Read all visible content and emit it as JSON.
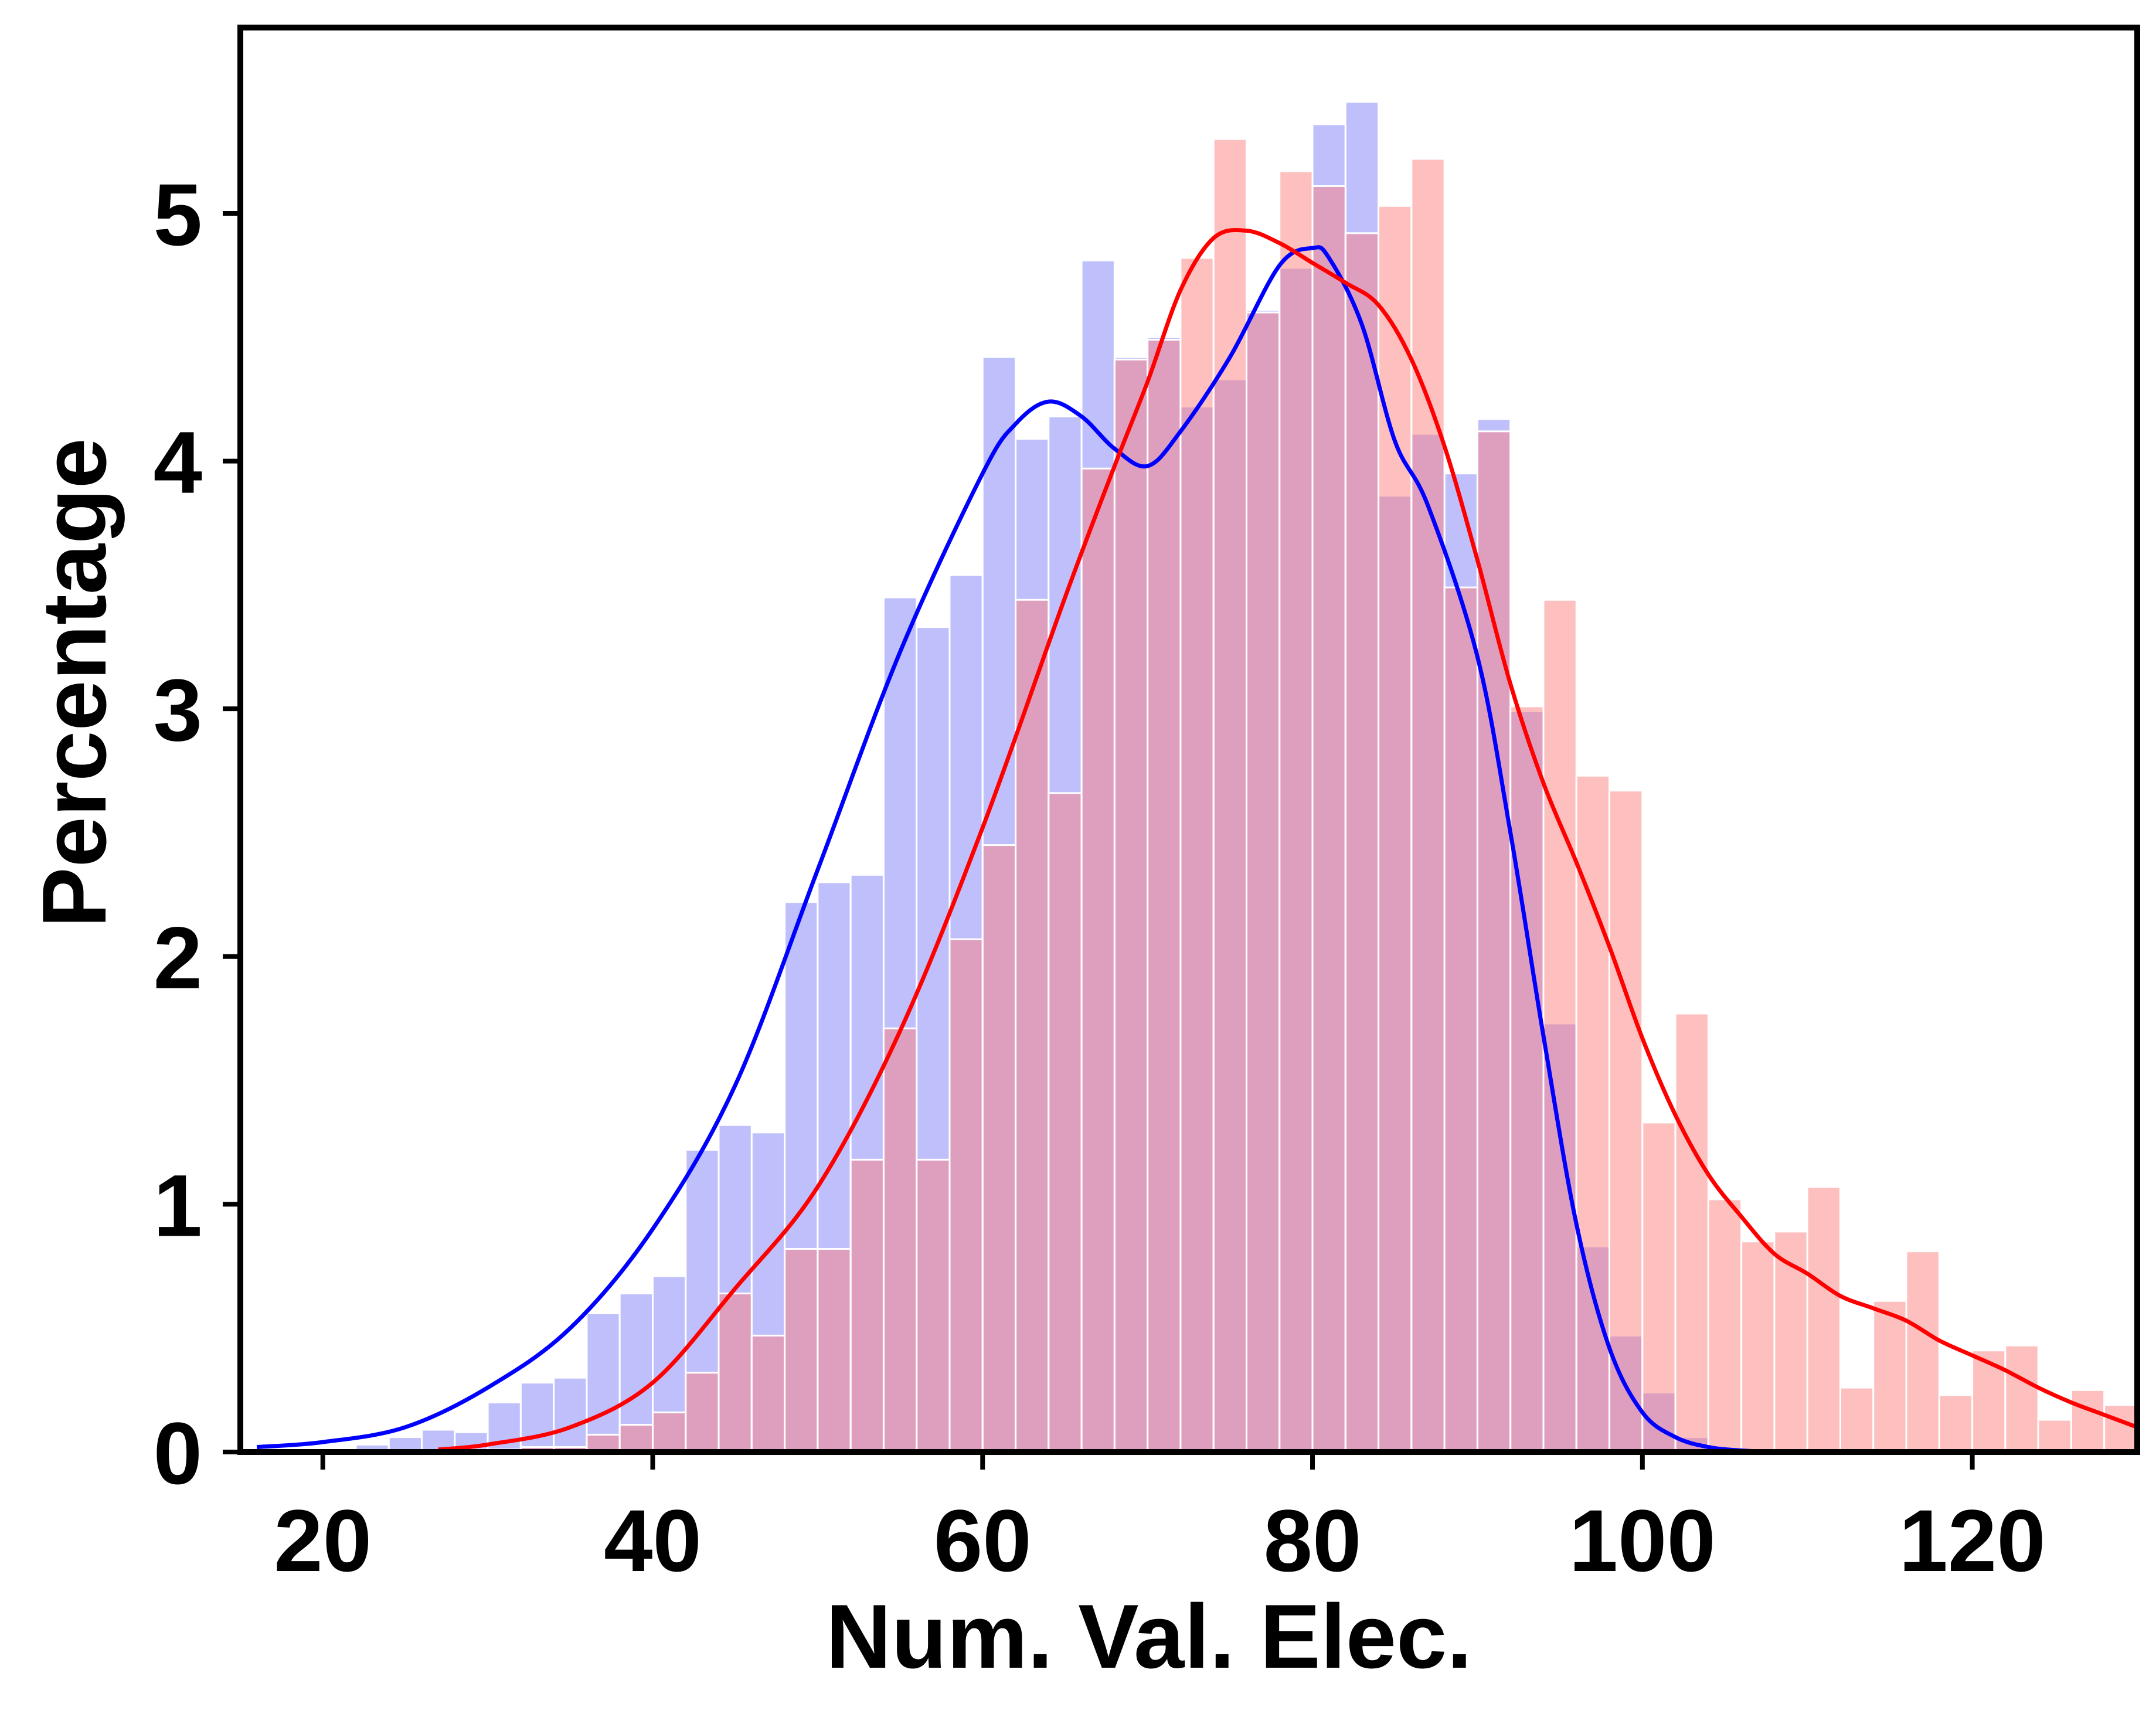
{
  "chart_data": {
    "type": "bar",
    "xlabel": "Num. Val. Elec.",
    "ylabel": "Percentage",
    "xlim": [
      15,
      130
    ],
    "ylim": [
      0,
      5.75
    ],
    "grid": false,
    "bin_width": 2,
    "x_ticks": [
      20,
      40,
      60,
      80,
      100,
      120
    ],
    "y_ticks": [
      0,
      1,
      2,
      3,
      4,
      5
    ],
    "series": [
      {
        "color": "#0000ff",
        "bar_color": "#8080fa",
        "bin_starts": [
          22,
          24,
          26,
          28,
          30,
          32,
          34,
          36,
          38,
          40,
          42,
          44,
          46,
          48,
          50,
          52,
          54,
          56,
          58,
          60,
          62,
          64,
          66,
          68,
          70,
          72,
          74,
          76,
          78,
          80,
          82,
          84,
          86,
          88,
          90,
          92,
          94,
          96,
          98,
          100,
          102
        ],
        "values": [
          0.03,
          0.06,
          0.09,
          0.08,
          0.2,
          0.28,
          0.3,
          0.56,
          0.64,
          0.71,
          1.22,
          1.32,
          1.29,
          2.22,
          2.3,
          2.33,
          3.45,
          3.33,
          3.54,
          4.42,
          4.09,
          4.18,
          4.81,
          4.42,
          4.5,
          4.22,
          4.33,
          4.61,
          4.78,
          5.36,
          5.45,
          3.86,
          4.11,
          3.95,
          4.17,
          2.99,
          1.73,
          0.83,
          0.47,
          0.24,
          0.06
        ],
        "kde": {
          "x": [
            16,
            20,
            25,
            30,
            35,
            40,
            45,
            50,
            55,
            60,
            62,
            64,
            66,
            68,
            70,
            72,
            75,
            78,
            80,
            81,
            83,
            85,
            87,
            90,
            92,
            94,
            96,
            98,
            100,
            102,
            104,
            106,
            108
          ],
          "y": [
            0.02,
            0.04,
            0.1,
            0.26,
            0.5,
            0.9,
            1.48,
            2.35,
            3.23,
            3.95,
            4.15,
            4.24,
            4.18,
            4.05,
            3.98,
            4.12,
            4.42,
            4.79,
            4.86,
            4.82,
            4.55,
            4.08,
            3.82,
            3.21,
            2.5,
            1.68,
            0.92,
            0.42,
            0.16,
            0.06,
            0.02,
            0.006,
            0.001
          ]
        }
      },
      {
        "color": "#ff0000",
        "bar_color": "#fd8080",
        "bin_starts": [
          28,
          30,
          32,
          34,
          36,
          38,
          40,
          42,
          44,
          46,
          48,
          50,
          52,
          54,
          56,
          58,
          60,
          62,
          64,
          66,
          68,
          70,
          72,
          74,
          76,
          78,
          80,
          82,
          84,
          86,
          88,
          90,
          92,
          94,
          96,
          98,
          100,
          102,
          104,
          106,
          108,
          110,
          112,
          114,
          116,
          118,
          120,
          122,
          124,
          126,
          128
        ],
        "values": [
          0.01,
          0.01,
          0.02,
          0.02,
          0.07,
          0.11,
          0.16,
          0.32,
          0.64,
          0.47,
          0.82,
          0.82,
          1.18,
          1.71,
          1.18,
          2.07,
          2.45,
          3.44,
          2.66,
          3.97,
          4.41,
          4.49,
          4.82,
          5.3,
          4.6,
          5.17,
          5.11,
          4.92,
          5.03,
          5.22,
          3.49,
          4.12,
          3.01,
          3.44,
          2.73,
          2.67,
          1.33,
          1.77,
          1.02,
          0.85,
          0.89,
          1.07,
          0.26,
          0.61,
          0.81,
          0.23,
          0.41,
          0.43,
          0.13,
          0.25,
          0.19
        ],
        "kde": {
          "x": [
            27,
            30,
            35,
            40,
            45,
            50,
            55,
            60,
            65,
            68,
            70,
            72,
            74,
            76,
            78,
            80,
            82,
            84,
            86,
            88,
            90,
            92,
            94,
            96,
            98,
            100,
            102,
            104,
            106,
            108,
            110,
            112,
            114,
            116,
            118,
            120,
            122,
            124,
            126,
            128,
            130
          ],
          "y": [
            0.01,
            0.03,
            0.1,
            0.28,
            0.66,
            1.07,
            1.7,
            2.52,
            3.45,
            3.98,
            4.32,
            4.69,
            4.9,
            4.93,
            4.88,
            4.8,
            4.72,
            4.63,
            4.41,
            4.06,
            3.6,
            3.1,
            2.7,
            2.38,
            2.04,
            1.67,
            1.36,
            1.12,
            0.95,
            0.8,
            0.72,
            0.63,
            0.58,
            0.53,
            0.45,
            0.39,
            0.33,
            0.26,
            0.2,
            0.15,
            0.1
          ]
        }
      }
    ]
  }
}
